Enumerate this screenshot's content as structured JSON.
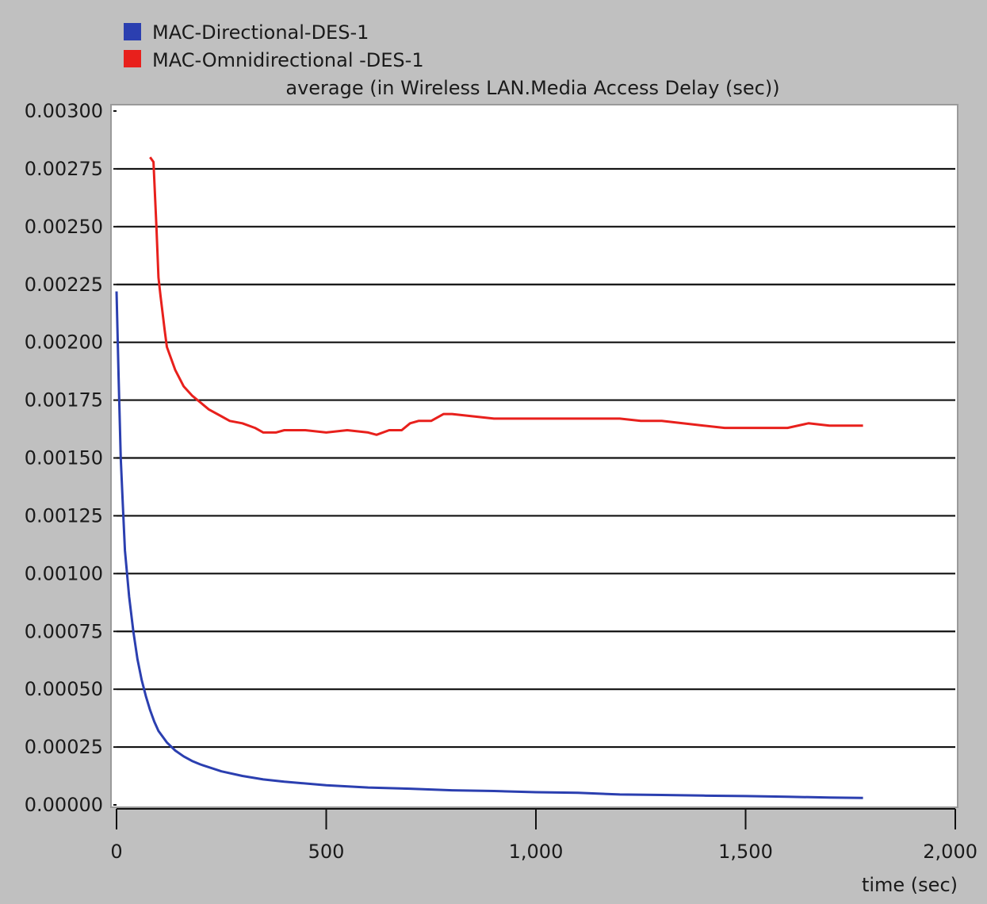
{
  "chart_data": {
    "type": "line",
    "title": "average (in Wireless LAN.Media Access Delay (sec))",
    "xlabel": "time (sec)",
    "ylabel": "",
    "xlim": [
      0,
      2000
    ],
    "ylim": [
      0,
      0.003
    ],
    "x_ticks": [
      0,
      500,
      1000,
      1500,
      2000
    ],
    "x_tick_labels": [
      "0",
      "500",
      "1,000",
      "1,500",
      "2,000"
    ],
    "y_ticks": [
      0,
      0.00025,
      0.0005,
      0.00075,
      0.001,
      0.00125,
      0.0015,
      0.00175,
      0.002,
      0.00225,
      0.0025,
      0.00275,
      0.003
    ],
    "y_tick_labels": [
      "0.00000",
      "0.00025",
      "0.00050",
      "0.00075",
      "0.00100",
      "0.00125",
      "0.00150",
      "0.00175",
      "0.00200",
      "0.00225",
      "0.00250",
      "0.00275",
      "0.00300"
    ],
    "grid": true,
    "legend_position": "top-left",
    "series": [
      {
        "name": "MAC-Directional-DES-1",
        "color": "#2b3fb0",
        "points": [
          [
            0,
            0.00222
          ],
          [
            5,
            0.00185
          ],
          [
            10,
            0.0015
          ],
          [
            15,
            0.0013
          ],
          [
            20,
            0.0011
          ],
          [
            30,
            0.0009
          ],
          [
            40,
            0.00075
          ],
          [
            50,
            0.00063
          ],
          [
            60,
            0.00054
          ],
          [
            70,
            0.00047
          ],
          [
            80,
            0.00041
          ],
          [
            90,
            0.00036
          ],
          [
            100,
            0.00032
          ],
          [
            120,
            0.00027
          ],
          [
            140,
            0.000235
          ],
          [
            160,
            0.00021
          ],
          [
            180,
            0.00019
          ],
          [
            200,
            0.000175
          ],
          [
            250,
            0.000145
          ],
          [
            300,
            0.000125
          ],
          [
            350,
            0.00011
          ],
          [
            400,
            0.0001
          ],
          [
            500,
            8.5e-05
          ],
          [
            600,
            7.5e-05
          ],
          [
            700,
            7e-05
          ],
          [
            800,
            6.3e-05
          ],
          [
            900,
            6e-05
          ],
          [
            1000,
            5.5e-05
          ],
          [
            1100,
            5.2e-05
          ],
          [
            1200,
            4.5e-05
          ],
          [
            1300,
            4.3e-05
          ],
          [
            1400,
            4e-05
          ],
          [
            1500,
            3.8e-05
          ],
          [
            1600,
            3.5e-05
          ],
          [
            1700,
            3.2e-05
          ],
          [
            1780,
            3e-05
          ]
        ]
      },
      {
        "name": "MAC-Omnidirectional -DES-1",
        "color": "#e8201c",
        "points": [
          [
            80,
            0.0028
          ],
          [
            88,
            0.00278
          ],
          [
            95,
            0.0025
          ],
          [
            100,
            0.00228
          ],
          [
            105,
            0.0022
          ],
          [
            115,
            0.00205
          ],
          [
            120,
            0.00198
          ],
          [
            140,
            0.00188
          ],
          [
            160,
            0.00181
          ],
          [
            180,
            0.00177
          ],
          [
            200,
            0.00174
          ],
          [
            220,
            0.00171
          ],
          [
            250,
            0.00168
          ],
          [
            270,
            0.00166
          ],
          [
            300,
            0.00165
          ],
          [
            330,
            0.00163
          ],
          [
            350,
            0.00161
          ],
          [
            380,
            0.00161
          ],
          [
            400,
            0.00162
          ],
          [
            450,
            0.00162
          ],
          [
            500,
            0.00161
          ],
          [
            550,
            0.00162
          ],
          [
            600,
            0.00161
          ],
          [
            620,
            0.0016
          ],
          [
            650,
            0.00162
          ],
          [
            680,
            0.00162
          ],
          [
            700,
            0.00165
          ],
          [
            720,
            0.00166
          ],
          [
            750,
            0.00166
          ],
          [
            780,
            0.00169
          ],
          [
            800,
            0.00169
          ],
          [
            850,
            0.00168
          ],
          [
            900,
            0.00167
          ],
          [
            950,
            0.00167
          ],
          [
            1000,
            0.00167
          ],
          [
            1050,
            0.00167
          ],
          [
            1100,
            0.00167
          ],
          [
            1150,
            0.00167
          ],
          [
            1200,
            0.00167
          ],
          [
            1250,
            0.00166
          ],
          [
            1300,
            0.00166
          ],
          [
            1350,
            0.00165
          ],
          [
            1400,
            0.00164
          ],
          [
            1450,
            0.00163
          ],
          [
            1500,
            0.00163
          ],
          [
            1550,
            0.00163
          ],
          [
            1600,
            0.00163
          ],
          [
            1650,
            0.00165
          ],
          [
            1700,
            0.00164
          ],
          [
            1780,
            0.00164
          ]
        ]
      }
    ]
  }
}
